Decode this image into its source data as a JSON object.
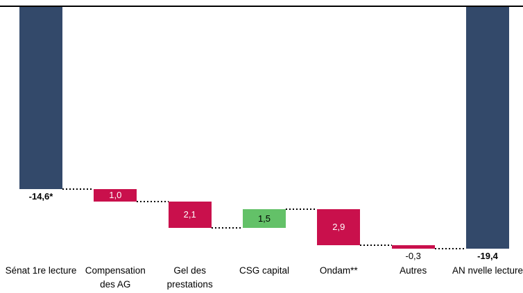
{
  "chart_data": {
    "type": "waterfall",
    "title": "",
    "decimal_separator": ",",
    "connector_style": "dotted",
    "colors": {
      "start": "#33496A",
      "end": "#33496A",
      "decrease": "#C9104C",
      "increase": "#63C168",
      "zero_line": "#000000"
    },
    "axis": {
      "orientation": "zero-at-top-descending",
      "value_range": [
        -19.4,
        0
      ],
      "gridlines": false
    },
    "steps": [
      {
        "category": "Sénat 1re lecture",
        "category_lines": [
          "Sénat 1re lecture"
        ],
        "role": "start",
        "value": -14.6,
        "display": "-14,6*",
        "label_placement": "below",
        "label_color": "#000000",
        "label_bold": true
      },
      {
        "category": "Compensation des AG",
        "category_lines": [
          "Compensation",
          "des AG"
        ],
        "role": "decrease",
        "value": -1.0,
        "display": "1,0",
        "label_placement": "inside",
        "label_color": "#FFFFFF",
        "label_bold": false
      },
      {
        "category": "Gel des prestations",
        "category_lines": [
          "Gel des",
          "prestations"
        ],
        "role": "decrease",
        "value": -2.1,
        "display": "2,1",
        "label_placement": "inside",
        "label_color": "#FFFFFF",
        "label_bold": false
      },
      {
        "category": "CSG capital",
        "category_lines": [
          "CSG capital"
        ],
        "role": "increase",
        "value": 1.5,
        "display": "1,5",
        "label_placement": "inside",
        "label_color": "#000000",
        "label_bold": false
      },
      {
        "category": "Ondam**",
        "category_lines": [
          "Ondam**"
        ],
        "role": "decrease",
        "value": -2.9,
        "display": "2,9",
        "label_placement": "inside",
        "label_color": "#FFFFFF",
        "label_bold": false
      },
      {
        "category": "Autres",
        "category_lines": [
          "Autres"
        ],
        "role": "decrease",
        "value": -0.3,
        "display": "-0,3",
        "label_placement": "below",
        "label_color": "#000000",
        "label_bold": false
      },
      {
        "category": "AN nvelle lecture",
        "category_lines": [
          "AN nvelle lecture"
        ],
        "role": "end",
        "value": -19.4,
        "display": "-19,4",
        "label_placement": "below",
        "label_color": "#000000",
        "label_bold": true
      }
    ]
  }
}
